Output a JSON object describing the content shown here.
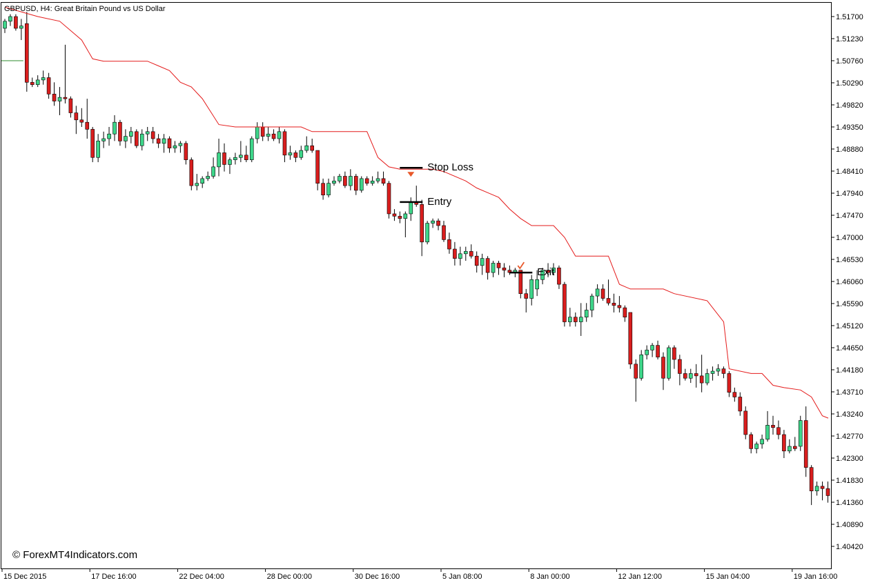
{
  "chart_title": "GBPUSD, H4:  Great Britain Pound vs US Dollar",
  "watermark": "© ForexMT4Indicators.com",
  "colors": {
    "bull": "#3ed68a",
    "bear": "#d91e1e",
    "wick": "#000000",
    "stop_line": "#e41a1a",
    "background": "#ffffff",
    "marker_arrow": "#e8582a",
    "marker_check": "#e8582a",
    "level_line": "#000000",
    "prev_line": "#2e8b2e"
  },
  "chart_data": {
    "type": "candlestick",
    "symbol": "GBPUSD",
    "timeframe": "H4",
    "title": "GBPUSD, H4:  Great Britain Pound vs US Dollar",
    "ylim": [
      1.4,
      1.519
    ],
    "y_ticks": [
      "1.51700",
      "1.51230",
      "1.50760",
      "1.50290",
      "1.49820",
      "1.49350",
      "1.48880",
      "1.48410",
      "1.47940",
      "1.47470",
      "1.47000",
      "1.46530",
      "1.46060",
      "1.45590",
      "1.45120",
      "1.44650",
      "1.44180",
      "1.43710",
      "1.43240",
      "1.42770",
      "1.42300",
      "1.41830",
      "1.41360",
      "1.40890",
      "1.40420"
    ],
    "x_ticks": [
      {
        "label": "15 Dec 2015",
        "index": 0
      },
      {
        "label": "17 Dec 16:00",
        "index": 16
      },
      {
        "label": "22 Dec 04:00",
        "index": 32
      },
      {
        "label": "28 Dec 00:00",
        "index": 48
      },
      {
        "label": "30 Dec 16:00",
        "index": 64
      },
      {
        "label": "5 Jan 08:00",
        "index": 80
      },
      {
        "label": "8 Jan 00:00",
        "index": 96
      },
      {
        "label": "12 Jan 12:00",
        "index": 112
      },
      {
        "label": "15 Jan 04:00",
        "index": 128
      },
      {
        "label": "19 Jan 16:00",
        "index": 144
      }
    ],
    "candles": [
      [
        1.5145,
        1.5165,
        1.5135,
        1.516
      ],
      [
        1.516,
        1.5175,
        1.515,
        1.517
      ],
      [
        1.517,
        1.5175,
        1.514,
        1.5145
      ],
      [
        1.5145,
        1.5165,
        1.512,
        1.515
      ],
      [
        1.5155,
        1.518,
        1.501,
        1.503
      ],
      [
        1.503,
        1.504,
        1.502,
        1.5025
      ],
      [
        1.5025,
        1.5045,
        1.502,
        1.5035
      ],
      [
        1.5035,
        1.5055,
        1.5025,
        1.504
      ],
      [
        1.504,
        1.505,
        1.4995,
        1.5005
      ],
      [
        1.5005,
        1.503,
        1.498,
        1.499
      ],
      [
        1.499,
        1.502,
        1.496,
        1.4998
      ],
      [
        1.4998,
        1.511,
        1.4985,
        1.4995
      ],
      [
        1.4995,
        1.5,
        1.4955,
        1.4965
      ],
      [
        1.4965,
        1.498,
        1.492,
        1.495
      ],
      [
        1.495,
        1.4975,
        1.4935,
        1.4945
      ],
      [
        1.4945,
        1.4995,
        1.491,
        1.493
      ],
      [
        1.493,
        1.4935,
        1.486,
        1.487
      ],
      [
        1.487,
        1.492,
        1.486,
        1.4905
      ],
      [
        1.4905,
        1.4925,
        1.489,
        1.491
      ],
      [
        1.491,
        1.4935,
        1.4895,
        1.492
      ],
      [
        1.492,
        1.496,
        1.4905,
        1.4945
      ],
      [
        1.4945,
        1.495,
        1.4895,
        1.4905
      ],
      [
        1.4905,
        1.493,
        1.489,
        1.4915
      ],
      [
        1.4915,
        1.4935,
        1.49,
        1.4925
      ],
      [
        1.4925,
        1.493,
        1.489,
        1.4895
      ],
      [
        1.4895,
        1.493,
        1.4885,
        1.492
      ],
      [
        1.492,
        1.4935,
        1.4905,
        1.4925
      ],
      [
        1.4925,
        1.4935,
        1.49,
        1.491
      ],
      [
        1.491,
        1.492,
        1.489,
        1.49
      ],
      [
        1.49,
        1.492,
        1.488,
        1.491
      ],
      [
        1.491,
        1.4915,
        1.488,
        1.489
      ],
      [
        1.489,
        1.4905,
        1.488,
        1.4895
      ],
      [
        1.4895,
        1.4905,
        1.488,
        1.49
      ],
      [
        1.49,
        1.4905,
        1.4855,
        1.4865
      ],
      [
        1.4865,
        1.487,
        1.48,
        1.481
      ],
      [
        1.481,
        1.4835,
        1.48,
        1.4815
      ],
      [
        1.4815,
        1.483,
        1.4805,
        1.4825
      ],
      [
        1.4825,
        1.484,
        1.482,
        1.483
      ],
      [
        1.483,
        1.487,
        1.4825,
        1.485
      ],
      [
        1.485,
        1.491,
        1.483,
        1.488
      ],
      [
        1.488,
        1.49,
        1.484,
        1.4855
      ],
      [
        1.4855,
        1.487,
        1.4835,
        1.4865
      ],
      [
        1.4865,
        1.488,
        1.4855,
        1.487
      ],
      [
        1.487,
        1.4905,
        1.486,
        1.4875
      ],
      [
        1.4875,
        1.4895,
        1.486,
        1.4865
      ],
      [
        1.4865,
        1.4915,
        1.486,
        1.491
      ],
      [
        1.491,
        1.4945,
        1.49,
        1.4935
      ],
      [
        1.4935,
        1.4945,
        1.4905,
        1.4915
      ],
      [
        1.4915,
        1.4935,
        1.4905,
        1.492
      ],
      [
        1.492,
        1.493,
        1.4905,
        1.491
      ],
      [
        1.491,
        1.4935,
        1.49,
        1.4925
      ],
      [
        1.4925,
        1.493,
        1.486,
        1.4875
      ],
      [
        1.4875,
        1.4895,
        1.4865,
        1.488
      ],
      [
        1.488,
        1.4885,
        1.486,
        1.487
      ],
      [
        1.487,
        1.4895,
        1.4865,
        1.4885
      ],
      [
        1.4885,
        1.4915,
        1.488,
        1.4895
      ],
      [
        1.4895,
        1.491,
        1.488,
        1.4885
      ],
      [
        1.4885,
        1.4885,
        1.48,
        1.4815
      ],
      [
        1.4815,
        1.4825,
        1.478,
        1.479
      ],
      [
        1.479,
        1.4825,
        1.4785,
        1.4815
      ],
      [
        1.4815,
        1.483,
        1.481,
        1.482
      ],
      [
        1.482,
        1.4835,
        1.4815,
        1.483
      ],
      [
        1.483,
        1.484,
        1.4805,
        1.481
      ],
      [
        1.481,
        1.4845,
        1.48,
        1.483
      ],
      [
        1.483,
        1.4835,
        1.479,
        1.48
      ],
      [
        1.48,
        1.483,
        1.4795,
        1.4825
      ],
      [
        1.4825,
        1.483,
        1.481,
        1.4815
      ],
      [
        1.4815,
        1.483,
        1.481,
        1.482
      ],
      [
        1.482,
        1.484,
        1.4815,
        1.4825
      ],
      [
        1.4825,
        1.484,
        1.481,
        1.4815
      ],
      [
        1.4815,
        1.482,
        1.474,
        1.475
      ],
      [
        1.475,
        1.476,
        1.4735,
        1.4745
      ],
      [
        1.4745,
        1.4755,
        1.473,
        1.474
      ],
      [
        1.474,
        1.4755,
        1.47,
        1.475
      ],
      [
        1.475,
        1.4785,
        1.4735,
        1.4775
      ],
      [
        1.4775,
        1.481,
        1.4765,
        1.477
      ],
      [
        1.477,
        1.478,
        1.466,
        1.469
      ],
      [
        1.469,
        1.4735,
        1.4685,
        1.473
      ],
      [
        1.473,
        1.474,
        1.472,
        1.4735
      ],
      [
        1.4735,
        1.474,
        1.4715,
        1.4725
      ],
      [
        1.4725,
        1.4735,
        1.469,
        1.4695
      ],
      [
        1.4695,
        1.471,
        1.4665,
        1.4675
      ],
      [
        1.4675,
        1.469,
        1.464,
        1.4655
      ],
      [
        1.4655,
        1.468,
        1.464,
        1.4665
      ],
      [
        1.4665,
        1.468,
        1.465,
        1.467
      ],
      [
        1.467,
        1.4685,
        1.4655,
        1.466
      ],
      [
        1.466,
        1.467,
        1.4625,
        1.464
      ],
      [
        1.464,
        1.4665,
        1.462,
        1.4655
      ],
      [
        1.4655,
        1.466,
        1.461,
        1.4625
      ],
      [
        1.4625,
        1.465,
        1.4615,
        1.4645
      ],
      [
        1.4645,
        1.465,
        1.462,
        1.4635
      ],
      [
        1.4635,
        1.4645,
        1.4615,
        1.463
      ],
      [
        1.463,
        1.464,
        1.462,
        1.4625
      ],
      [
        1.4625,
        1.4635,
        1.4615,
        1.463
      ],
      [
        1.463,
        1.463,
        1.457,
        1.458
      ],
      [
        1.458,
        1.459,
        1.454,
        1.457
      ],
      [
        1.457,
        1.462,
        1.4555,
        1.461
      ],
      [
        1.459,
        1.463,
        1.4575,
        1.461
      ],
      [
        1.461,
        1.4635,
        1.46,
        1.463
      ],
      [
        1.463,
        1.4645,
        1.4615,
        1.4625
      ],
      [
        1.4625,
        1.4645,
        1.462,
        1.4635
      ],
      [
        1.4635,
        1.464,
        1.459,
        1.46
      ],
      [
        1.46,
        1.4605,
        1.451,
        1.452
      ],
      [
        1.452,
        1.455,
        1.451,
        1.453
      ],
      [
        1.453,
        1.454,
        1.451,
        1.452
      ],
      [
        1.452,
        1.456,
        1.449,
        1.453
      ],
      [
        1.453,
        1.456,
        1.452,
        1.4545
      ],
      [
        1.4545,
        1.458,
        1.453,
        1.4575
      ],
      [
        1.4575,
        1.46,
        1.456,
        1.459
      ],
      [
        1.459,
        1.46,
        1.4565,
        1.457
      ],
      [
        1.457,
        1.461,
        1.4555,
        1.456
      ],
      [
        1.456,
        1.458,
        1.454,
        1.4555
      ],
      [
        1.4555,
        1.4575,
        1.454,
        1.455
      ],
      [
        1.455,
        1.4555,
        1.452,
        1.453
      ],
      [
        1.454,
        1.454,
        1.442,
        1.443
      ],
      [
        1.443,
        1.444,
        1.435,
        1.44
      ],
      [
        1.44,
        1.446,
        1.4395,
        1.445
      ],
      [
        1.445,
        1.447,
        1.444,
        1.446
      ],
      [
        1.446,
        1.4475,
        1.4445,
        1.447
      ],
      [
        1.447,
        1.448,
        1.444,
        1.4445
      ],
      [
        1.4445,
        1.4455,
        1.4375,
        1.44
      ],
      [
        1.44,
        1.447,
        1.4395,
        1.4465
      ],
      [
        1.4465,
        1.447,
        1.442,
        1.444
      ],
      [
        1.444,
        1.445,
        1.4385,
        1.441
      ],
      [
        1.441,
        1.442,
        1.4395,
        1.44
      ],
      [
        1.44,
        1.442,
        1.439,
        1.441
      ],
      [
        1.441,
        1.443,
        1.438,
        1.4405
      ],
      [
        1.4405,
        1.445,
        1.437,
        1.439
      ],
      [
        1.439,
        1.442,
        1.4385,
        1.441
      ],
      [
        1.441,
        1.4425,
        1.4395,
        1.4415
      ],
      [
        1.4415,
        1.443,
        1.4405,
        1.442
      ],
      [
        1.442,
        1.4425,
        1.44,
        1.441
      ],
      [
        1.441,
        1.4415,
        1.436,
        1.437
      ],
      [
        1.437,
        1.438,
        1.435,
        1.436
      ],
      [
        1.436,
        1.437,
        1.432,
        1.433
      ],
      [
        1.433,
        1.434,
        1.427,
        1.428
      ],
      [
        1.428,
        1.4285,
        1.424,
        1.425
      ],
      [
        1.425,
        1.4265,
        1.424,
        1.426
      ],
      [
        1.426,
        1.428,
        1.425,
        1.427
      ],
      [
        1.427,
        1.433,
        1.4265,
        1.43
      ],
      [
        1.43,
        1.432,
        1.428,
        1.4295
      ],
      [
        1.4295,
        1.431,
        1.427,
        1.428
      ],
      [
        1.428,
        1.429,
        1.423,
        1.4245
      ],
      [
        1.4245,
        1.427,
        1.424,
        1.4255
      ],
      [
        1.4255,
        1.4275,
        1.4245,
        1.425
      ],
      [
        1.4255,
        1.432,
        1.4245,
        1.431
      ],
      [
        1.431,
        1.434,
        1.419,
        1.421
      ],
      [
        1.421,
        1.4215,
        1.413,
        1.416
      ],
      [
        1.416,
        1.418,
        1.415,
        1.417
      ],
      [
        1.417,
        1.418,
        1.414,
        1.4165
      ],
      [
        1.4165,
        1.418,
        1.4135,
        1.415
      ],
      [
        1.415,
        1.417,
        1.4125,
        1.414
      ],
      [
        1.414,
        1.4175,
        1.413,
        1.4165
      ],
      [
        1.416,
        1.4215,
        1.415,
        1.4165
      ]
    ],
    "stop_line": [
      [
        0,
        1.519
      ],
      [
        6,
        1.517
      ],
      [
        10,
        1.516
      ],
      [
        14,
        1.512
      ],
      [
        16,
        1.508
      ],
      [
        18,
        1.5075
      ],
      [
        26,
        1.5075
      ],
      [
        28,
        1.5065
      ],
      [
        30,
        1.5055
      ],
      [
        32,
        1.503
      ],
      [
        34,
        1.502
      ],
      [
        36,
        1.4995
      ],
      [
        39,
        1.494
      ],
      [
        42,
        1.4935
      ],
      [
        54,
        1.4935
      ],
      [
        56,
        1.4925
      ],
      [
        66,
        1.4925
      ],
      [
        68,
        1.487
      ],
      [
        70,
        1.485
      ],
      [
        72,
        1.4845
      ],
      [
        78,
        1.4845
      ],
      [
        80,
        1.484
      ],
      [
        84,
        1.482
      ],
      [
        86,
        1.4805
      ],
      [
        88,
        1.4795
      ],
      [
        90,
        1.4785
      ],
      [
        92,
        1.476
      ],
      [
        94,
        1.474
      ],
      [
        96,
        1.4725
      ],
      [
        100,
        1.4725
      ],
      [
        102,
        1.47
      ],
      [
        104,
        1.466
      ],
      [
        110,
        1.466
      ],
      [
        112,
        1.46
      ],
      [
        114,
        1.459
      ],
      [
        120,
        1.459
      ],
      [
        122,
        1.458
      ],
      [
        128,
        1.4565
      ],
      [
        131,
        1.452
      ],
      [
        132,
        1.442
      ],
      [
        136,
        1.441
      ],
      [
        138,
        1.441
      ],
      [
        140,
        1.4385
      ],
      [
        142,
        1.438
      ],
      [
        145,
        1.4375
      ],
      [
        147,
        1.436
      ],
      [
        149,
        1.432
      ],
      [
        151,
        1.4315
      ]
    ],
    "prev_segment": {
      "x_from": 0,
      "x_to": 3,
      "value": 1.5076
    },
    "annotations": [
      {
        "label": "Stop Loss",
        "level": 1.4848,
        "x": 74,
        "marker": "arrow-down"
      },
      {
        "label": "Entry",
        "level": 1.4775,
        "x": 74,
        "marker": "none"
      },
      {
        "label": "Exit",
        "level": 1.4625,
        "x": 94,
        "marker": "check"
      }
    ],
    "xlabel": "",
    "ylabel": "",
    "grid": false
  }
}
